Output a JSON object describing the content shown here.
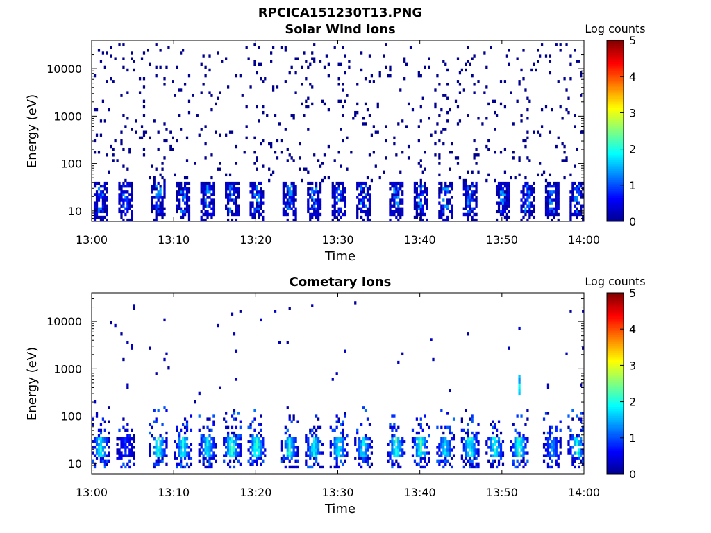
{
  "figure": {
    "title": "RPCICA151230T13.PNG"
  },
  "colors": {
    "jet": [
      "#00008f",
      "#0000ff",
      "#0080ff",
      "#00ffff",
      "#80ff80",
      "#ffff00",
      "#ff8000",
      "#ff0000",
      "#800000"
    ],
    "axis": "#000000",
    "background": "#ffffff"
  },
  "chart_data": [
    {
      "type": "heatmap",
      "title": "Solar Wind Ions",
      "xlabel": "Time",
      "ylabel": "Energy (eV)",
      "y_scale": "log",
      "xlim": [
        "13:00",
        "14:00"
      ],
      "ylim": [
        6,
        40000
      ],
      "x_ticks": [
        "13:00",
        "13:10",
        "13:20",
        "13:30",
        "13:40",
        "13:50",
        "14:00"
      ],
      "y_ticks": [
        "10",
        "100",
        "1000",
        "10000"
      ],
      "colorbar": {
        "label": "Log counts",
        "range": [
          0,
          5
        ],
        "ticks": [
          "0",
          "1",
          "2",
          "3",
          "4",
          "5"
        ],
        "colormap": "jet"
      },
      "description_data": {
        "low_energy_band_eV": [
          8,
          40
        ],
        "low_energy_band_log_counts": [
          0,
          1.5
        ],
        "scattered_high_energy_eV": [
          40,
          40000
        ],
        "scattered_high_energy_log_counts": 0,
        "burst_times": [
          "13:01",
          "13:04",
          "13:08",
          "13:11",
          "13:14",
          "13:17",
          "13:20",
          "13:24",
          "13:27",
          "13:30",
          "13:33",
          "13:37",
          "13:40",
          "13:43",
          "13:46",
          "13:50",
          "13:53",
          "13:56",
          "13:59"
        ]
      }
    },
    {
      "type": "heatmap",
      "title": "Cometary Ions",
      "xlabel": "Time",
      "ylabel": "Energy (eV)",
      "y_scale": "log",
      "xlim": [
        "13:00",
        "14:00"
      ],
      "ylim": [
        6,
        40000
      ],
      "x_ticks": [
        "13:00",
        "13:10",
        "13:20",
        "13:30",
        "13:40",
        "13:50",
        "14:00"
      ],
      "y_ticks": [
        "10",
        "100",
        "1000",
        "10000"
      ],
      "colorbar": {
        "label": "Log counts",
        "range": [
          0,
          5
        ],
        "ticks": [
          "0",
          "1",
          "2",
          "3",
          "4",
          "5"
        ],
        "colormap": "jet"
      },
      "description_data": {
        "bursts": [
          {
            "time": "13:01",
            "peak": 2.2
          },
          {
            "time": "13:04",
            "peak": 1.0
          },
          {
            "time": "13:08",
            "peak": 2.4
          },
          {
            "time": "13:11",
            "peak": 2.3
          },
          {
            "time": "13:14",
            "peak": 2.2
          },
          {
            "time": "13:17",
            "peak": 2.5
          },
          {
            "time": "13:20",
            "peak": 2.4
          },
          {
            "time": "13:24",
            "peak": 2.3
          },
          {
            "time": "13:27",
            "peak": 2.4
          },
          {
            "time": "13:30",
            "peak": 2.2
          },
          {
            "time": "13:33",
            "peak": 2.0
          },
          {
            "time": "13:37",
            "peak": 2.4
          },
          {
            "time": "13:40",
            "peak": 2.5
          },
          {
            "time": "13:43",
            "peak": 2.0
          },
          {
            "time": "13:46",
            "peak": 2.3
          },
          {
            "time": "13:49",
            "peak": 2.3
          },
          {
            "time": "13:52",
            "peak": 2.5
          },
          {
            "time": "13:56",
            "peak": 1.6
          },
          {
            "time": "13:59",
            "peak": 2.3
          }
        ],
        "core_band_eV": [
          15,
          35
        ],
        "extended_band_eV": [
          8,
          180
        ],
        "spike_13_52_eV": [
          300,
          700
        ]
      }
    }
  ]
}
